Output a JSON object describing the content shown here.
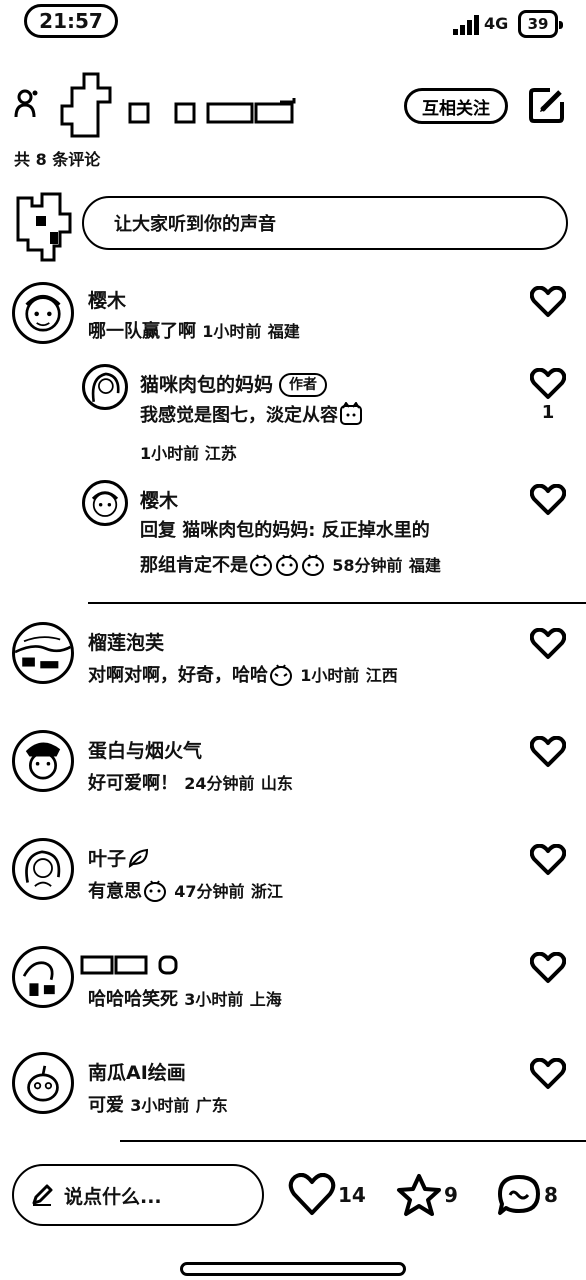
{
  "status": {
    "time": "21:57",
    "network": "4G",
    "battery": "39"
  },
  "header": {
    "follow_label": "互相关注",
    "comment_count": "共 8 条评论"
  },
  "input": {
    "placeholder": "让大家听到你的声音"
  },
  "comments": [
    {
      "name": "樱木",
      "text": "哪一队赢了啊",
      "time": "1小时前",
      "location": "福建"
    },
    {
      "name": "猫咪肉包的妈妈",
      "tag": "作者",
      "text": "我感觉是图七，淡定从容",
      "time": "1小时前",
      "location": "江苏",
      "likes": "1"
    },
    {
      "name": "樱木",
      "text_line1": "回复 猫咪肉包的妈妈: 反正掉水里的",
      "text_line2": "那组肯定不是",
      "time": "58分钟前",
      "location": "福建"
    },
    {
      "name": "榴莲泡芙",
      "text": "对啊对啊，好奇，哈哈",
      "time": "1小时前",
      "location": "江西"
    },
    {
      "name": "蛋白与烟火气",
      "text": "好可爱啊！",
      "time": "24分钟前",
      "location": "山东"
    },
    {
      "name": "叶子",
      "text": "有意思",
      "time": "47分钟前",
      "location": "浙江"
    },
    {
      "name": "",
      "text": "哈哈哈笑死",
      "time": "3小时前",
      "location": "上海"
    },
    {
      "name": "南瓜AI绘画",
      "text": "可爱",
      "time": "3小时前",
      "location": "广东"
    }
  ],
  "bottom": {
    "placeholder": "说点什么...",
    "likes": "14",
    "stars": "9",
    "comments": "8"
  }
}
